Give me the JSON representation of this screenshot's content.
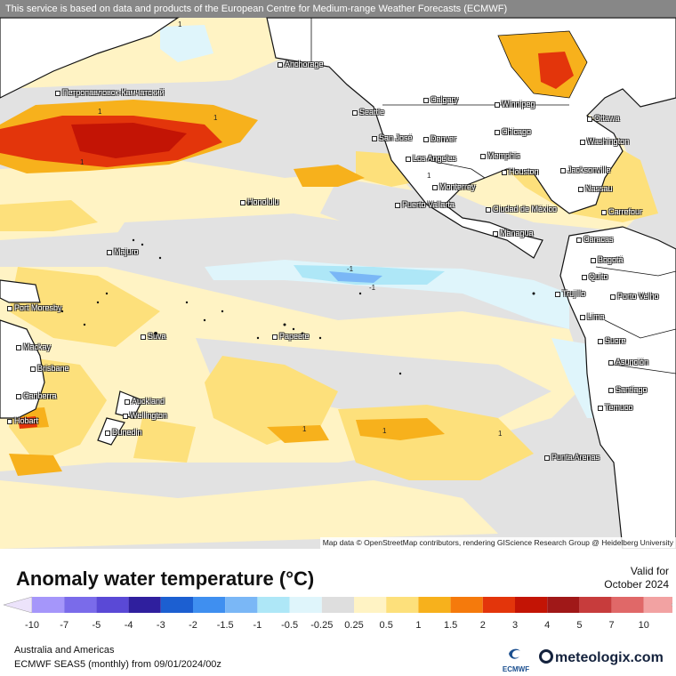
{
  "banner": "This service is based on data and products of the European Centre for Medium-range Weather Forecasts (ECMWF)",
  "attribution": "Map data © OpenStreetMap contributors, rendering GIScience Research Group @ Heidelberg University",
  "title": "Anomaly water temperature (°C)",
  "valid_label": "Valid for",
  "valid_date": "October 2024",
  "region": "Australia and Americas",
  "model_line": "ECMWF SEAS5 (monthly) from 09/01/2024/00z",
  "ecmwf_logo_text": "ECMWF",
  "brand": "meteologix.com",
  "legend": {
    "ticks": [
      "-10",
      "-7",
      "-5",
      "-4",
      "-3",
      "-2",
      "-1.5",
      "-1",
      "-0.5",
      "-0.25",
      "0.25",
      "0.5",
      "1",
      "1.5",
      "2",
      "3",
      "4",
      "5",
      "7",
      "10"
    ],
    "colors": [
      "#a596fa",
      "#7a6bea",
      "#5a49d6",
      "#2f1f9e",
      "#1c5fd1",
      "#3f8ff0",
      "#7ab7f6",
      "#aee7f7",
      "#dff5fb",
      "#dedede",
      "#fff3c4",
      "#fde07b",
      "#f7b11c",
      "#f57a0c",
      "#e3350b",
      "#c31405",
      "#a01818",
      "#c73c3c",
      "#e06868",
      "#f2a2a2"
    ],
    "left_end_color": "#ece3fb",
    "right_end_color": "#fbe0e0"
  },
  "cities": [
    {
      "name": "Anchorage"
    },
    {
      "name": "Петропавловск-Камчатский"
    },
    {
      "name": "Calgary"
    },
    {
      "name": "Winnipeg"
    },
    {
      "name": "Seattle"
    },
    {
      "name": "Ottawa"
    },
    {
      "name": "Chicago"
    },
    {
      "name": "San José"
    },
    {
      "name": "Denver"
    },
    {
      "name": "Washington"
    },
    {
      "name": "Memphis"
    },
    {
      "name": "Los Angeles"
    },
    {
      "name": "Jacksonville"
    },
    {
      "name": "Houston"
    },
    {
      "name": "Monterrey"
    },
    {
      "name": "Nassau"
    },
    {
      "name": "Honolulu"
    },
    {
      "name": "Puerto Vallarta"
    },
    {
      "name": "Ciudad de México"
    },
    {
      "name": "Carrefour"
    },
    {
      "name": "Managua"
    },
    {
      "name": "Caracas"
    },
    {
      "name": "Majuro"
    },
    {
      "name": "Bogotá"
    },
    {
      "name": "Quito"
    },
    {
      "name": "Trujillo"
    },
    {
      "name": "Porto Velho"
    },
    {
      "name": "Port Moresby"
    },
    {
      "name": "Lima"
    },
    {
      "name": "Suva"
    },
    {
      "name": "Papeete"
    },
    {
      "name": "Sucre"
    },
    {
      "name": "Mackay"
    },
    {
      "name": "Asunción"
    },
    {
      "name": "Brisbane"
    },
    {
      "name": "Santiago"
    },
    {
      "name": "Canberra"
    },
    {
      "name": "Auckland"
    },
    {
      "name": "Temuco"
    },
    {
      "name": "Wellington"
    },
    {
      "name": "Hobart"
    },
    {
      "name": "Dunedin"
    },
    {
      "name": "Punta Arenas"
    }
  ],
  "contour_label": "1",
  "contour_label_negative": "-1"
}
